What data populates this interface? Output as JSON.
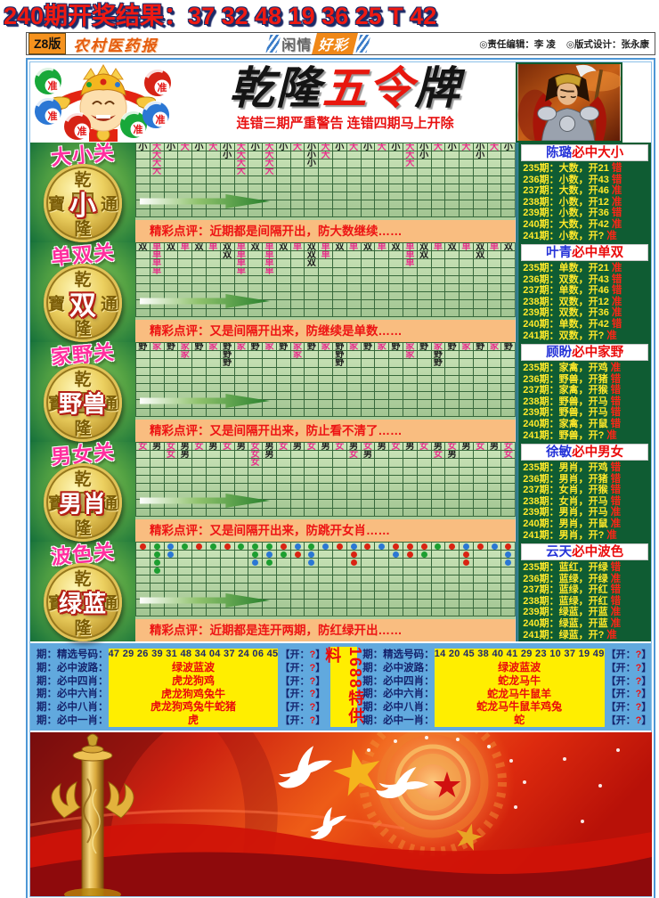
{
  "top": {
    "result_line": "240期开奖结果：37 32 48 19 36 25 T 42"
  },
  "masthead": {
    "edition": "Z8版",
    "paper": "农村医药报",
    "center_left": "闲情",
    "center_right": "好彩",
    "editor": "◎责任编辑：李 凌",
    "designer": "◎版式设计：张永康"
  },
  "title": {
    "black1": "乾隆",
    "red": "五令",
    "black2": "牌",
    "warning": "连错三期严重警告 连错四期马上开除"
  },
  "palette": {
    "R": "#d92312",
    "G": "#1c9e30",
    "B": "#2b77d4",
    "pink": "#e8308a",
    "ink": "#1a1a1a"
  },
  "sections": [
    {
      "key": "daxiao",
      "label": "大小关",
      "coin_ring": [
        "乾",
        "寶",
        "通",
        "隆"
      ],
      "coin_center": "小",
      "comment": "精彩点评：近期都是间隔开出，防大数继续……",
      "grid": {
        "type": "char",
        "pink": "大",
        "rows": [
          "小大小大小大小大小大小大小大小大小大小大小大小大小大小",
          ".大....小大.大..小大.....大小...小..",
          ".大.....大.大..小......大.......",
          ".大.....大.大..............."
        ]
      }
    },
    {
      "key": "danshuang",
      "label": "单双关",
      "coin_ring": [
        "乾",
        "寶",
        "通",
        "隆"
      ],
      "coin_center": "双",
      "comment": "精彩点评：又是间隔开出来，防继续是单数……",
      "grid": {
        "type": "char",
        "pink": "单",
        "rows": [
          "双单双单双单双单双单双单双单双单双单双单双单双单双单双",
          ".单....双单.单..双单.....单双...双..",
          ".单.....单.单..双......单.......",
          ".单.....单.单..............."
        ]
      }
    },
    {
      "key": "jiaye",
      "label": "家野关",
      "coin_ring": [
        "乾",
        "寶",
        "通",
        "隆"
      ],
      "coin_center": "野兽",
      "comment": "精彩点评：又是间隔开出来，防止看不清了……",
      "grid": {
        "type": "char",
        "pink": "家",
        "rows": [
          "野家野家野家野家野家野家野家野家野家野家野家野家野家野",
          "...家..野....家..野....家.野.....",
          "......野.......野......野....."
        ]
      }
    },
    {
      "key": "nannv",
      "label": "男女关",
      "coin_ring": [
        "乾",
        "寶",
        "通",
        "隆"
      ],
      "coin_center": "男肖",
      "comment": "精彩点评：又是间隔开出来，防跳开女肖……",
      "grid": {
        "type": "char",
        "pink": "女",
        "rows": [
          "女男女男女男女男女男女男女男女男女男女男女男女男女男女",
          "..女男....女男.....女男....女男...女",
          "........女.................."
        ]
      }
    },
    {
      "key": "bose",
      "label": "波色关",
      "coin_ring": [
        "乾",
        "寶",
        "通",
        "隆"
      ],
      "coin_center": "绿蓝",
      "comment": "精彩点评：近期都是连开两期，防红绿开出……",
      "grid": {
        "type": "dot",
        "pink": "",
        "rows": [
          "RGBGRGRGGGRBGBRBRBRRRGRBRBR",
          ".GB.....GBGRB..R..BRG..R..B",
          ".G......BG..B..R.......R..B",
          ".G........................."
        ]
      }
    }
  ],
  "experts": [
    {
      "name": "陈璐",
      "claim": "必中大小",
      "records": [
        {
          "period": "235期",
          "pick": "大数",
          "open": "开21",
          "verdict": "错"
        },
        {
          "period": "236期",
          "pick": "小数",
          "open": "开43",
          "verdict": "错"
        },
        {
          "period": "237期",
          "pick": "大数",
          "open": "开46",
          "verdict": "准"
        },
        {
          "period": "238期",
          "pick": "小数",
          "open": "开12",
          "verdict": "准"
        },
        {
          "period": "239期",
          "pick": "小数",
          "open": "开36",
          "verdict": "错"
        },
        {
          "period": "240期",
          "pick": "大数",
          "open": "开42",
          "verdict": "准"
        },
        {
          "period": "241期",
          "pick": "小数",
          "open": "开?",
          "verdict": "准"
        }
      ]
    },
    {
      "name": "叶青",
      "claim": "必中单双",
      "records": [
        {
          "period": "235期",
          "pick": "单数",
          "open": "开21",
          "verdict": "准"
        },
        {
          "period": "236期",
          "pick": "双数",
          "open": "开43",
          "verdict": "错"
        },
        {
          "period": "237期",
          "pick": "单数",
          "open": "开46",
          "verdict": "错"
        },
        {
          "period": "238期",
          "pick": "双数",
          "open": "开12",
          "verdict": "准"
        },
        {
          "period": "239期",
          "pick": "双数",
          "open": "开36",
          "verdict": "准"
        },
        {
          "period": "240期",
          "pick": "单数",
          "open": "开42",
          "verdict": "错"
        },
        {
          "period": "241期",
          "pick": "双数",
          "open": "开?",
          "verdict": "准"
        }
      ]
    },
    {
      "name": "顾盼",
      "claim": "必中家野",
      "records": [
        {
          "period": "235期",
          "pick": "家禽",
          "open": "开鸡",
          "verdict": "准"
        },
        {
          "period": "236期",
          "pick": "野兽",
          "open": "开猪",
          "verdict": "错"
        },
        {
          "period": "237期",
          "pick": "家禽",
          "open": "开猴",
          "verdict": "错"
        },
        {
          "period": "238期",
          "pick": "野兽",
          "open": "开马",
          "verdict": "错"
        },
        {
          "period": "239期",
          "pick": "野兽",
          "open": "开马",
          "verdict": "错"
        },
        {
          "period": "240期",
          "pick": "家禽",
          "open": "开鼠",
          "verdict": "错"
        },
        {
          "period": "241期",
          "pick": "野兽",
          "open": "开?",
          "verdict": "准"
        }
      ]
    },
    {
      "name": "徐敏",
      "claim": "必中男女",
      "records": [
        {
          "period": "235期",
          "pick": "男肖",
          "open": "开鸡",
          "verdict": "错"
        },
        {
          "period": "236期",
          "pick": "男肖",
          "open": "开猪",
          "verdict": "错"
        },
        {
          "period": "237期",
          "pick": "女肖",
          "open": "开猴",
          "verdict": "错"
        },
        {
          "period": "238期",
          "pick": "女肖",
          "open": "开马",
          "verdict": "错"
        },
        {
          "period": "239期",
          "pick": "男肖",
          "open": "开马",
          "verdict": "准"
        },
        {
          "period": "240期",
          "pick": "男肖",
          "open": "开鼠",
          "verdict": "准"
        },
        {
          "period": "241期",
          "pick": "男肖",
          "open": "开?",
          "verdict": "准"
        }
      ]
    },
    {
      "name": "云天",
      "claim": "必中波色",
      "records": [
        {
          "period": "235期",
          "pick": "蓝红",
          "open": "开绿",
          "verdict": "错"
        },
        {
          "period": "236期",
          "pick": "蓝绿",
          "open": "开绿",
          "verdict": "准"
        },
        {
          "period": "237期",
          "pick": "蓝绿",
          "open": "开红",
          "verdict": "错"
        },
        {
          "period": "238期",
          "pick": "蓝绿",
          "open": "开红",
          "verdict": "错"
        },
        {
          "period": "239期",
          "pick": "绿蓝",
          "open": "开蓝",
          "verdict": "准"
        },
        {
          "period": "240期",
          "pick": "绿蓝",
          "open": "开蓝",
          "verdict": "准"
        },
        {
          "period": "241期",
          "pick": "绿蓝",
          "open": "开?",
          "verdict": "准"
        }
      ]
    }
  ],
  "strip": {
    "text": "1688特供料"
  },
  "open_format": {
    "prefix": "【开：",
    "q": "?",
    "suffix": "】"
  },
  "tables": [
    {
      "rows": [
        {
          "label": "期：精选号码：",
          "value": "47 29 26 39 31 48 34 04 37 24 06 45",
          "style": "navy",
          "yellow": true
        },
        {
          "label": "期：必中波路：",
          "value": "绿波蓝波",
          "style": "red",
          "yellow": true
        },
        {
          "label": "期：必中四肖：",
          "value": "虎龙狗鸡",
          "style": "red",
          "yellow": true
        },
        {
          "label": "期：必中六肖：",
          "value": "虎龙狗鸡兔牛",
          "style": "red",
          "yellow": true
        },
        {
          "label": "期：必中八肖：",
          "value": "虎龙狗鸡兔牛蛇猪",
          "style": "red",
          "yellow": true
        },
        {
          "label": "期：必中一肖：",
          "value": "虎",
          "style": "red",
          "yellow": true
        }
      ]
    },
    {
      "rows": [
        {
          "label": "期：精选号码：",
          "value": "14 20 45 38 40 41 29 23 10 37 19 49",
          "style": "navy",
          "yellow": true
        },
        {
          "label": "期：必中波路：",
          "value": "绿波蓝波",
          "style": "red",
          "yellow": true
        },
        {
          "label": "期：必中四肖：",
          "value": "蛇龙马牛",
          "style": "red",
          "yellow": true
        },
        {
          "label": "期：必中六肖：",
          "value": "蛇龙马牛鼠羊",
          "style": "red",
          "yellow": true
        },
        {
          "label": "期：必中八肖：",
          "value": "蛇龙马牛鼠羊鸡兔",
          "style": "red",
          "yellow": true
        },
        {
          "label": "期：必中一肖：",
          "value": "蛇",
          "style": "red",
          "yellow": true
        }
      ]
    }
  ]
}
